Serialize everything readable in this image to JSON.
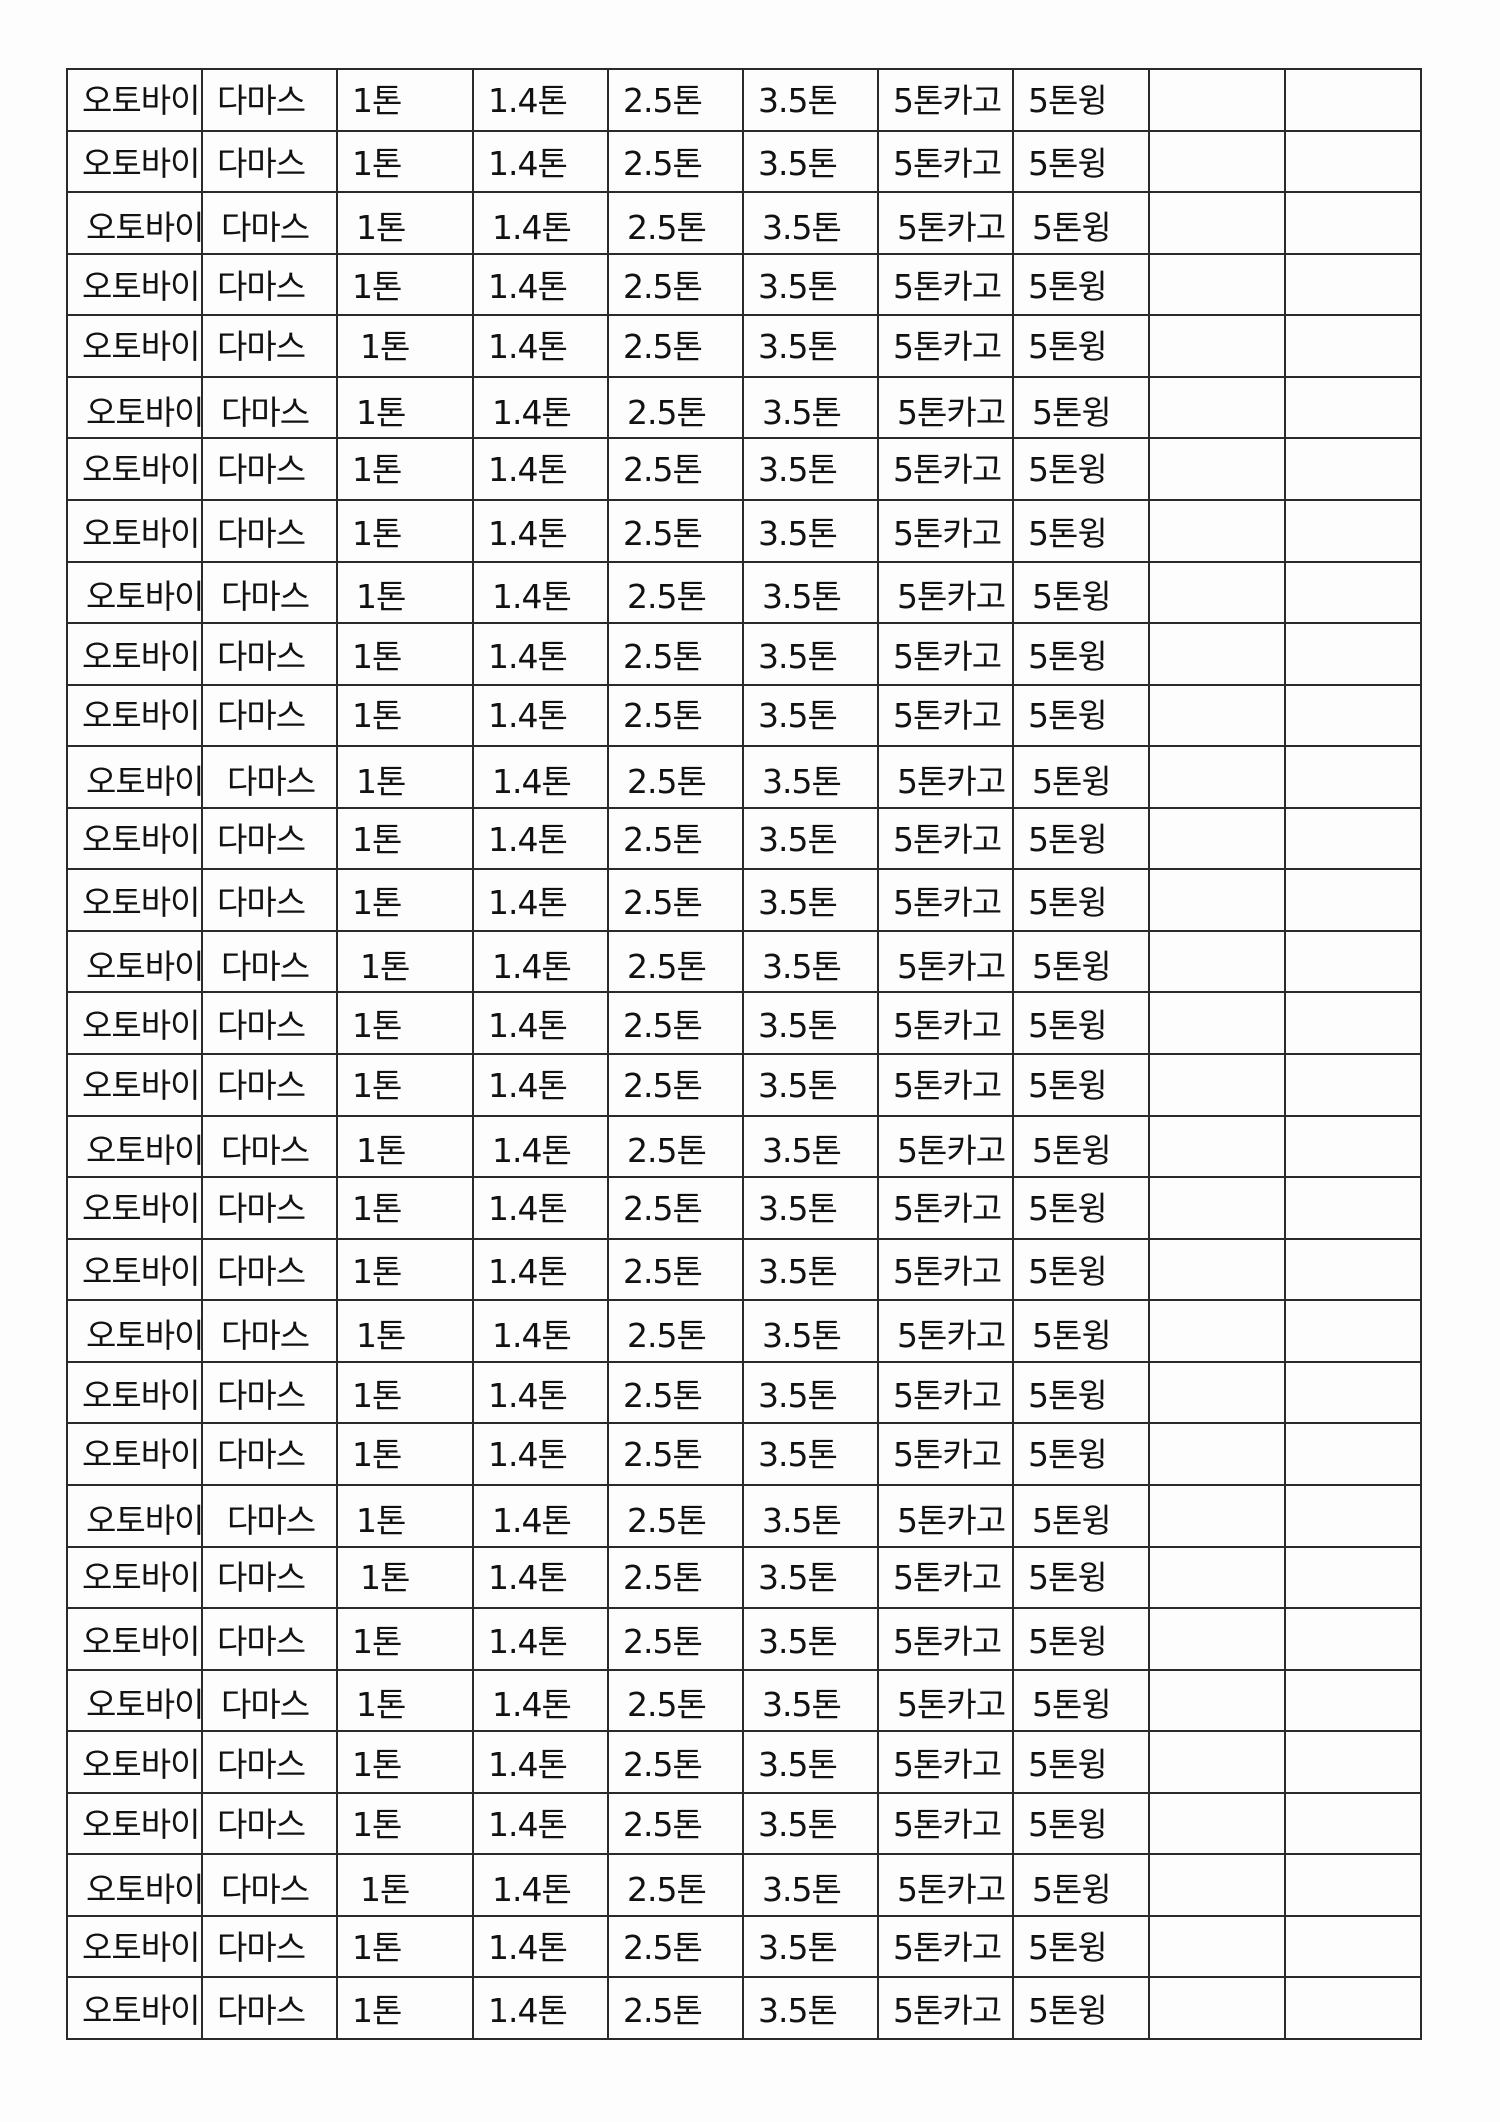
{
  "sheet": {
    "rows": [
      [
        "오토바이",
        "다마스",
        "1톤",
        "1.4톤",
        "2.5톤",
        "3.5톤",
        "5톤카고",
        "5톤윙",
        "",
        ""
      ],
      [
        "오토바이",
        "다마스",
        "1톤",
        "1.4톤",
        "2.5톤",
        "3.5톤",
        "5톤카고",
        "5톤윙",
        "",
        ""
      ],
      [
        "오토바이",
        "다마스",
        "1톤",
        "1.4톤",
        "2.5톤",
        "3.5톤",
        "5톤카고",
        "5톤윙",
        "",
        ""
      ],
      [
        "오토바이",
        "다마스",
        "1톤",
        "1.4톤",
        "2.5톤",
        "3.5톤",
        "5톤카고",
        "5톤윙",
        "",
        ""
      ],
      [
        "오토바이",
        "다마스",
        "1톤",
        "1.4톤",
        "2.5톤",
        "3.5톤",
        "5톤카고",
        "5톤윙",
        "",
        ""
      ],
      [
        "오토바이",
        "다마스",
        "1톤",
        "1.4톤",
        "2.5톤",
        "3.5톤",
        "5톤카고",
        "5톤윙",
        "",
        ""
      ],
      [
        "오토바이",
        "다마스",
        "1톤",
        "1.4톤",
        "2.5톤",
        "3.5톤",
        "5톤카고",
        "5톤윙",
        "",
        ""
      ],
      [
        "오토바이",
        "다마스",
        "1톤",
        "1.4톤",
        "2.5톤",
        "3.5톤",
        "5톤카고",
        "5톤윙",
        "",
        ""
      ],
      [
        "오토바이",
        "다마스",
        "1톤",
        "1.4톤",
        "2.5톤",
        "3.5톤",
        "5톤카고",
        "5톤윙",
        "",
        ""
      ],
      [
        "오토바이",
        "다마스",
        "1톤",
        "1.4톤",
        "2.5톤",
        "3.5톤",
        "5톤카고",
        "5톤윙",
        "",
        ""
      ],
      [
        "오토바이",
        "다마스",
        "1톤",
        "1.4톤",
        "2.5톤",
        "3.5톤",
        "5톤카고",
        "5톤윙",
        "",
        ""
      ],
      [
        "오토바이",
        "다마스",
        "1톤",
        "1.4톤",
        "2.5톤",
        "3.5톤",
        "5톤카고",
        "5톤윙",
        "",
        ""
      ],
      [
        "오토바이",
        "다마스",
        "1톤",
        "1.4톤",
        "2.5톤",
        "3.5톤",
        "5톤카고",
        "5톤윙",
        "",
        ""
      ],
      [
        "오토바이",
        "다마스",
        "1톤",
        "1.4톤",
        "2.5톤",
        "3.5톤",
        "5톤카고",
        "5톤윙",
        "",
        ""
      ],
      [
        "오토바이",
        "다마스",
        "1톤",
        "1.4톤",
        "2.5톤",
        "3.5톤",
        "5톤카고",
        "5톤윙",
        "",
        ""
      ],
      [
        "오토바이",
        "다마스",
        "1톤",
        "1.4톤",
        "2.5톤",
        "3.5톤",
        "5톤카고",
        "5톤윙",
        "",
        ""
      ],
      [
        "오토바이",
        "다마스",
        "1톤",
        "1.4톤",
        "2.5톤",
        "3.5톤",
        "5톤카고",
        "5톤윙",
        "",
        ""
      ],
      [
        "오토바이",
        "다마스",
        "1톤",
        "1.4톤",
        "2.5톤",
        "3.5톤",
        "5톤카고",
        "5톤윙",
        "",
        ""
      ],
      [
        "오토바이",
        "다마스",
        "1톤",
        "1.4톤",
        "2.5톤",
        "3.5톤",
        "5톤카고",
        "5톤윙",
        "",
        ""
      ],
      [
        "오토바이",
        "다마스",
        "1톤",
        "1.4톤",
        "2.5톤",
        "3.5톤",
        "5톤카고",
        "5톤윙",
        "",
        ""
      ],
      [
        "오토바이",
        "다마스",
        "1톤",
        "1.4톤",
        "2.5톤",
        "3.5톤",
        "5톤카고",
        "5톤윙",
        "",
        ""
      ],
      [
        "오토바이",
        "다마스",
        "1톤",
        "1.4톤",
        "2.5톤",
        "3.5톤",
        "5톤카고",
        "5톤윙",
        "",
        ""
      ],
      [
        "오토바이",
        "다마스",
        "1톤",
        "1.4톤",
        "2.5톤",
        "3.5톤",
        "5톤카고",
        "5톤윙",
        "",
        ""
      ],
      [
        "오토바이",
        "다마스",
        "1톤",
        "1.4톤",
        "2.5톤",
        "3.5톤",
        "5톤카고",
        "5톤윙",
        "",
        ""
      ],
      [
        "오토바이",
        "다마스",
        "1톤",
        "1.4톤",
        "2.5톤",
        "3.5톤",
        "5톤카고",
        "5톤윙",
        "",
        ""
      ],
      [
        "오토바이",
        "다마스",
        "1톤",
        "1.4톤",
        "2.5톤",
        "3.5톤",
        "5톤카고",
        "5톤윙",
        "",
        ""
      ],
      [
        "오토바이",
        "다마스",
        "1톤",
        "1.4톤",
        "2.5톤",
        "3.5톤",
        "5톤카고",
        "5톤윙",
        "",
        ""
      ],
      [
        "오토바이",
        "다마스",
        "1톤",
        "1.4톤",
        "2.5톤",
        "3.5톤",
        "5톤카고",
        "5톤윙",
        "",
        ""
      ],
      [
        "오토바이",
        "다마스",
        "1톤",
        "1.4톤",
        "2.5톤",
        "3.5톤",
        "5톤카고",
        "5톤윙",
        "",
        ""
      ],
      [
        "오토바이",
        "다마스",
        "1톤",
        "1.4톤",
        "2.5톤",
        "3.5톤",
        "5톤카고",
        "5톤윙",
        "",
        ""
      ],
      [
        "오토바이",
        "다마스",
        "1톤",
        "1.4톤",
        "2.5톤",
        "3.5톤",
        "5톤카고",
        "5톤윙",
        "",
        ""
      ],
      [
        "오토바이",
        "다마스",
        "1톤",
        "1.4톤",
        "2.5톤",
        "3.5톤",
        "5톤카고",
        "5톤윙",
        "",
        ""
      ]
    ]
  }
}
